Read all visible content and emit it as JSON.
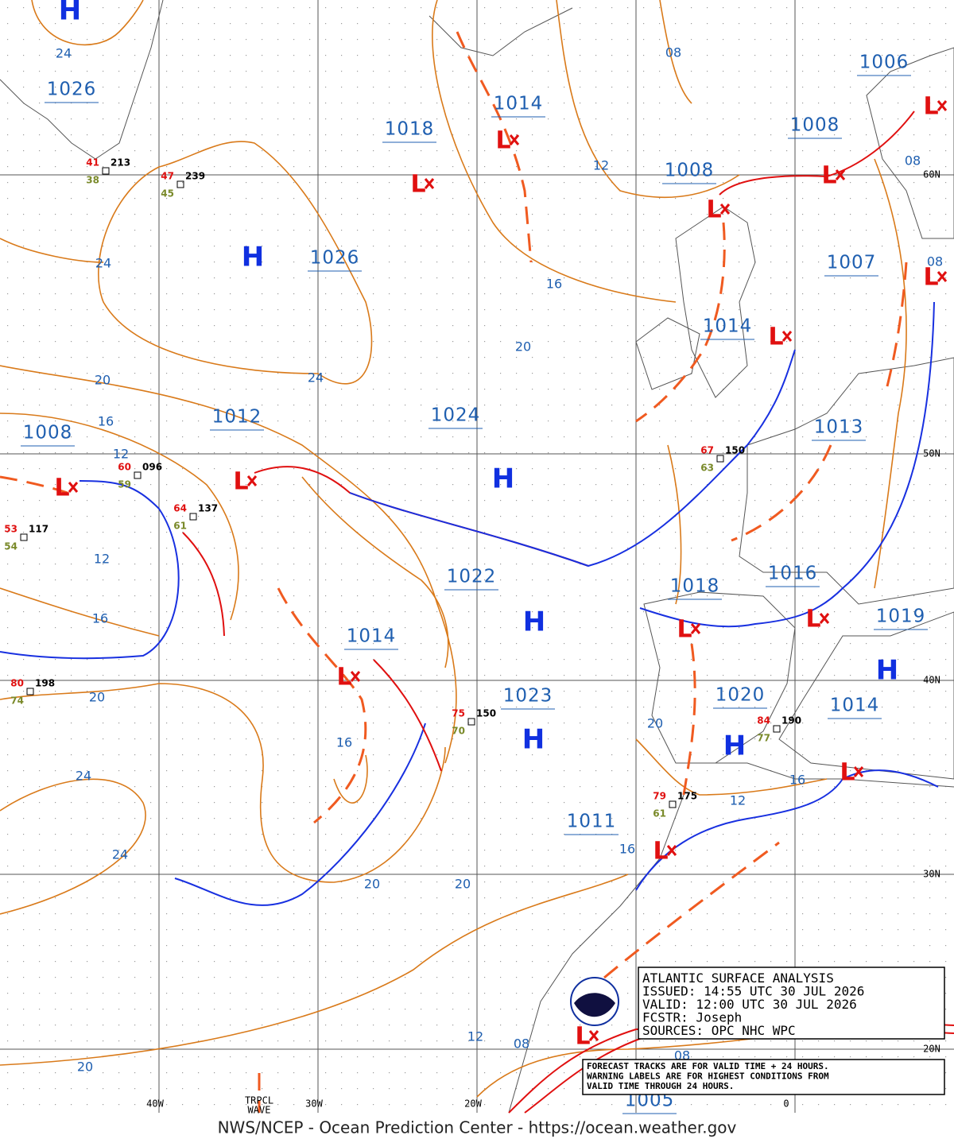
{
  "pressure_labels": [
    "1026",
    "1018",
    "1014",
    "1006",
    "1008",
    "1008",
    "1026",
    "1007",
    "1014",
    "1008",
    "1012",
    "1024",
    "1013",
    "1022",
    "1018",
    "1016",
    "1019",
    "1014",
    "1023",
    "1020",
    "1014",
    "1011",
    "1005"
  ],
  "isobar_labels": [
    "24",
    "08",
    "12",
    "08",
    "24",
    "16",
    "08",
    "20",
    "24",
    "20",
    "16",
    "12",
    "12",
    "16",
    "20",
    "16",
    "20",
    "24",
    "12",
    "16",
    "24",
    "16",
    "20",
    "20",
    "12",
    "08",
    "08",
    "20"
  ],
  "high_labels": [
    "H",
    "H",
    "H",
    "H",
    "H",
    "H",
    "H"
  ],
  "low_labels": [
    "L",
    "L",
    "L",
    "L",
    "L",
    "L",
    "L",
    "L",
    "L",
    "L",
    "L",
    "L",
    "L",
    "L",
    "L"
  ],
  "grid_labels": [
    "60N",
    "50N",
    "40N",
    "30N",
    "20N",
    "40W",
    "30W",
    "20W",
    "0"
  ],
  "tropical_wave": [
    "TRPCL",
    "WAVE"
  ],
  "stations": [
    {
      "temperature": "41",
      "dew_point": "38",
      "pressure": "213"
    },
    {
      "temperature": "47",
      "dew_point": "45",
      "pressure": "239"
    },
    {
      "temperature": "60",
      "dew_point": "59",
      "pressure": "096"
    },
    {
      "temperature": "64",
      "dew_point": "61",
      "pressure": "137"
    },
    {
      "temperature": "53",
      "dew_point": "54",
      "pressure": "117"
    },
    {
      "temperature": "80",
      "dew_point": "74",
      "pressure": "198"
    },
    {
      "temperature": "75",
      "dew_point": "70",
      "pressure": "150"
    },
    {
      "temperature": "67",
      "dew_point": "63",
      "pressure": "150"
    },
    {
      "temperature": "84",
      "dew_point": "77",
      "pressure": "190"
    },
    {
      "temperature": "79",
      "dew_point": "61",
      "pressure": "175"
    }
  ],
  "noaa_logo": "NOAA",
  "info_box": [
    "ATLANTIC SURFACE ANALYSIS",
    "ISSUED: 14:55 UTC 30 JUL 2026",
    "VALID:  12:00 UTC 30 JUL 2026",
    "FCSTR:  Joseph",
    "SOURCES: OPC NHC WPC"
  ],
  "forecast_note": [
    "FORECAST TRACKS ARE FOR VALID TIME + 24 HOURS.",
    "WARNING LABELS ARE FOR HIGHEST CONDITIONS FROM",
    "VALID TIME THROUGH 24 HOURS."
  ],
  "footer": "NWS/NCEP - Ocean Prediction Center - https://ocean.weather.gov"
}
